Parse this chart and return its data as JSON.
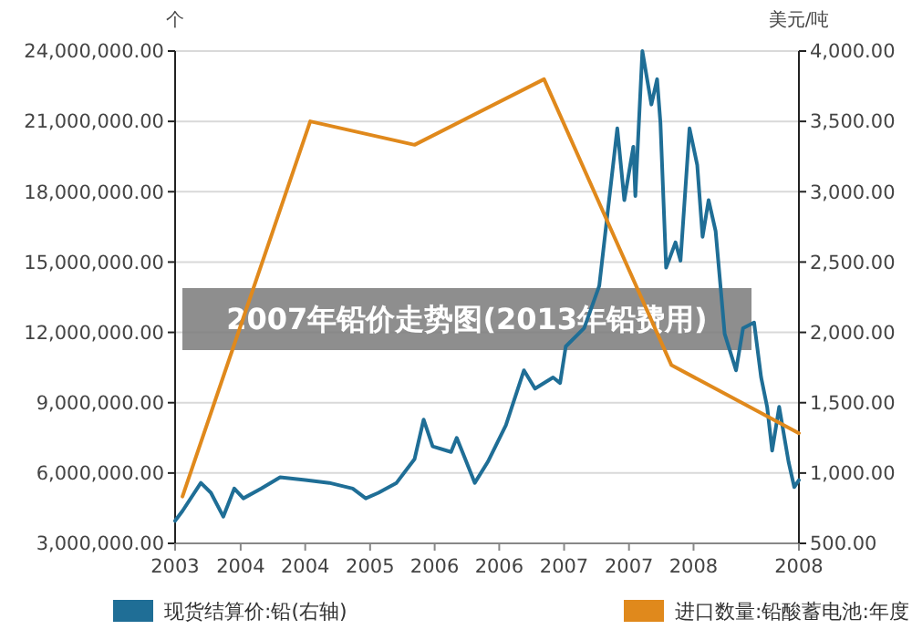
{
  "chart_data": {
    "type": "line",
    "title": "2007年铅价走势图(2013年铅费用)",
    "ylabel": "个",
    "y2label": "美元/吨",
    "xlim": [
      "2003-11-20",
      "2008-12-28"
    ],
    "xticks": [
      {
        "value": "2003-11-20",
        "label": "2003"
      },
      {
        "value": "2004-06-03",
        "label": "2004"
      },
      {
        "value": "2004-12-13",
        "label": "2004"
      },
      {
        "value": "2005-06-25",
        "label": "2005"
      },
      {
        "value": "2006-01-04",
        "label": "2006"
      },
      {
        "value": "2006-07-16",
        "label": "2006"
      },
      {
        "value": "2007-01-26",
        "label": "2007"
      },
      {
        "value": "2007-08-08",
        "label": "2007"
      },
      {
        "value": "2008-02-17",
        "label": "2008"
      },
      {
        "value": "2008-12-28",
        "label": "2008"
      }
    ],
    "ylim": [
      3000000,
      24000000
    ],
    "yticks": [
      {
        "value": 3000000,
        "label": "3,000,000.00"
      },
      {
        "value": 6000000,
        "label": "6,000,000.00"
      },
      {
        "value": 9000000,
        "label": "9,000,000.00"
      },
      {
        "value": 12000000,
        "label": "12,000,000.00"
      },
      {
        "value": 15000000,
        "label": "15,000,000.00"
      },
      {
        "value": 18000000,
        "label": "18,000,000.00"
      },
      {
        "value": 21000000,
        "label": "21,000,000.00"
      },
      {
        "value": 24000000,
        "label": "24,000,000.00"
      }
    ],
    "y2lim": [
      500,
      4000
    ],
    "y2ticks": [
      {
        "value": 500,
        "label": "500.00"
      },
      {
        "value": 1000,
        "label": "1,000.00"
      },
      {
        "value": 1500,
        "label": "1,500.00"
      },
      {
        "value": 2000,
        "label": "2,000.00"
      },
      {
        "value": 2500,
        "label": "2,500.00"
      },
      {
        "value": 3000,
        "label": "3,000.00"
      },
      {
        "value": 3500,
        "label": "3,500.00"
      },
      {
        "value": 4000,
        "label": "4,000.00"
      }
    ],
    "grid": "y",
    "legend": "bottom",
    "series": [
      {
        "name": "现货结算价:铅(右轴)",
        "color": "#1f6e96",
        "axis": "y2",
        "x": [
          "2003-11-20",
          "2003-12-12",
          "2004-02-05",
          "2004-03-06",
          "2004-04-12",
          "2004-05-15",
          "2004-06-11",
          "2004-08-04",
          "2004-09-29",
          "2004-12-13",
          "2005-02-23",
          "2005-05-04",
          "2005-06-12",
          "2005-07-20",
          "2005-09-12",
          "2005-11-05",
          "2005-12-02",
          "2005-12-29",
          "2006-02-22",
          "2006-03-11",
          "2006-05-04",
          "2006-06-12",
          "2006-08-05",
          "2006-09-28",
          "2006-10-31",
          "2006-12-24",
          "2007-01-14",
          "2007-01-31",
          "2007-03-27",
          "2007-05-11",
          "2007-07-04",
          "2007-07-25",
          "2007-08-21",
          "2007-08-27",
          "2007-09-17",
          "2007-10-14",
          "2007-10-31",
          "2007-11-10",
          "2007-11-27",
          "2007-12-25",
          "2008-01-09",
          "2008-02-05",
          "2008-02-28",
          "2008-03-15",
          "2008-04-02",
          "2008-04-23",
          "2008-05-09",
          "2008-05-20",
          "2008-06-23",
          "2008-07-14",
          "2008-08-16",
          "2008-09-06",
          "2008-09-24",
          "2008-10-09",
          "2008-10-30",
          "2008-11-27",
          "2008-12-14",
          "2008-12-28"
        ],
        "values": [
          660,
          730,
          930,
          860,
          690,
          890,
          820,
          890,
          970,
          950,
          930,
          890,
          820,
          860,
          930,
          1100,
          1380,
          1190,
          1150,
          1250,
          930,
          1080,
          1340,
          1730,
          1600,
          1680,
          1640,
          1900,
          2030,
          2330,
          3450,
          2940,
          3320,
          2970,
          4000,
          3620,
          3800,
          3490,
          2460,
          2640,
          2510,
          3450,
          3190,
          2680,
          2940,
          2720,
          2290,
          1990,
          1730,
          2030,
          2070,
          1680,
          1470,
          1160,
          1470,
          1080,
          900,
          950
        ]
      },
      {
        "name": "进口数量:铅酸蓄电池:年度",
        "color": "#e0891c",
        "x": [
          "2003-12-12",
          "2004-12-28",
          "2005-11-05",
          "2006-11-27",
          "2007-12-13",
          "2008-12-28"
        ],
        "values": [
          5000000,
          21000000,
          20000000,
          22800000,
          10600000,
          7700000
        ]
      }
    ]
  }
}
